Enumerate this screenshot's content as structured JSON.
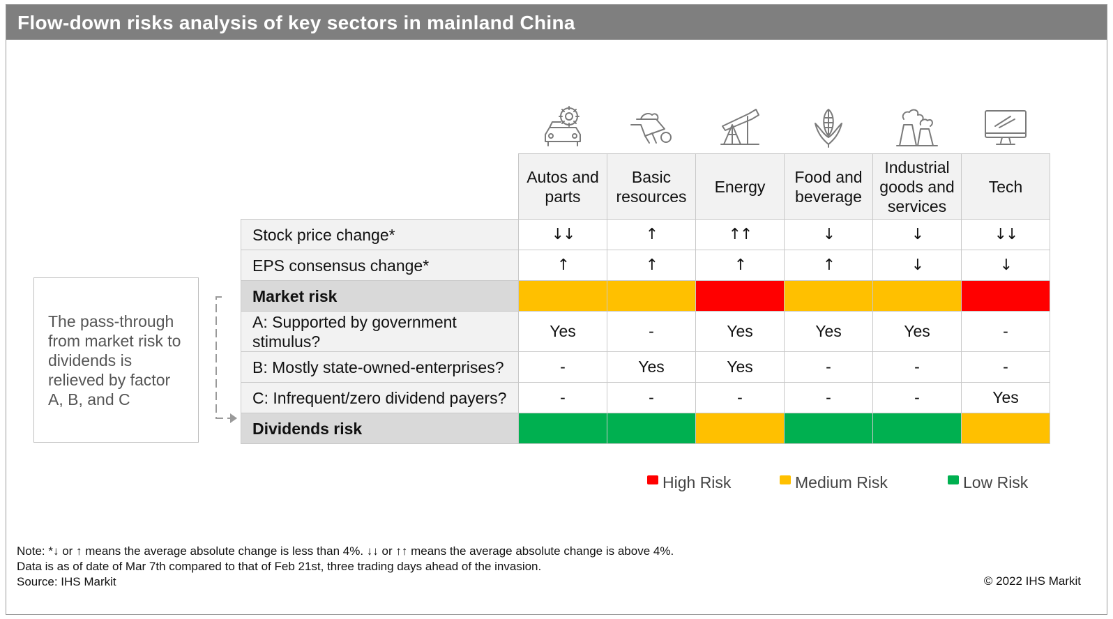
{
  "title": "Flow-down risks analysis of key sectors in mainland China",
  "side_note": "The pass-through from market risk to dividends is relieved by factor A, B, and C",
  "colors": {
    "high": "#ff0000",
    "medium": "#ffc000",
    "low": "#00b050",
    "title_bar": "#7f7f7f",
    "header_gray": "#f2f2f2",
    "row_gray": "#d9d9d9"
  },
  "chart_data": {
    "type": "table",
    "title": "Flow-down risks analysis of key sectors in mainland China",
    "columns": [
      "Autos and parts",
      "Basic resources",
      "Energy",
      "Food and beverage",
      "Industrial goods and services",
      "Tech"
    ],
    "icons": [
      "car-gear-icon",
      "wheelbarrow-icon",
      "oil-pump-icon",
      "corn-icon",
      "factory-icon",
      "monitor-icon"
    ],
    "rows": [
      {
        "label": "Stock price change*",
        "kind": "arrow",
        "values": [
          "↓↓",
          "↑",
          "↑↑",
          "↓",
          "↓",
          "↓↓"
        ]
      },
      {
        "label": "EPS consensus change*",
        "kind": "arrow",
        "values": [
          "↑",
          "↑",
          "↑",
          "↑",
          "↓",
          "↓"
        ]
      },
      {
        "label": "Market risk",
        "kind": "risk",
        "values": [
          "medium",
          "medium",
          "high",
          "medium",
          "medium",
          "high"
        ]
      },
      {
        "label": "A: Supported by government stimulus?",
        "kind": "text",
        "values": [
          "Yes",
          "-",
          "Yes",
          "Yes",
          "Yes",
          "-"
        ]
      },
      {
        "label": "B: Mostly state-owned-enterprises?",
        "kind": "text",
        "values": [
          "-",
          "Yes",
          "Yes",
          "-",
          "-",
          "-"
        ]
      },
      {
        "label": "C: Infrequent/zero dividend payers?",
        "kind": "text",
        "values": [
          "-",
          "-",
          "-",
          "-",
          "-",
          "Yes"
        ]
      },
      {
        "label": "Dividends risk",
        "kind": "risk",
        "values": [
          "low",
          "low",
          "medium",
          "low",
          "low",
          "medium"
        ]
      }
    ]
  },
  "legend": [
    {
      "label": "High Risk",
      "color": "#ff0000"
    },
    {
      "label": "Medium Risk",
      "color": "#ffc000"
    },
    {
      "label": "Low Risk",
      "color": "#00b050"
    }
  ],
  "notes": [
    "Note: *↓ or  ↑ means the average absolute change is less than 4%. ↓↓ or ↑↑ means the average absolute change is above 4%.",
    "Data is as of date of Mar 7th compared to that of Feb 21st, three trading days ahead of the invasion.",
    "Source: IHS Markit"
  ],
  "copyright": "© 2022 IHS Markit"
}
